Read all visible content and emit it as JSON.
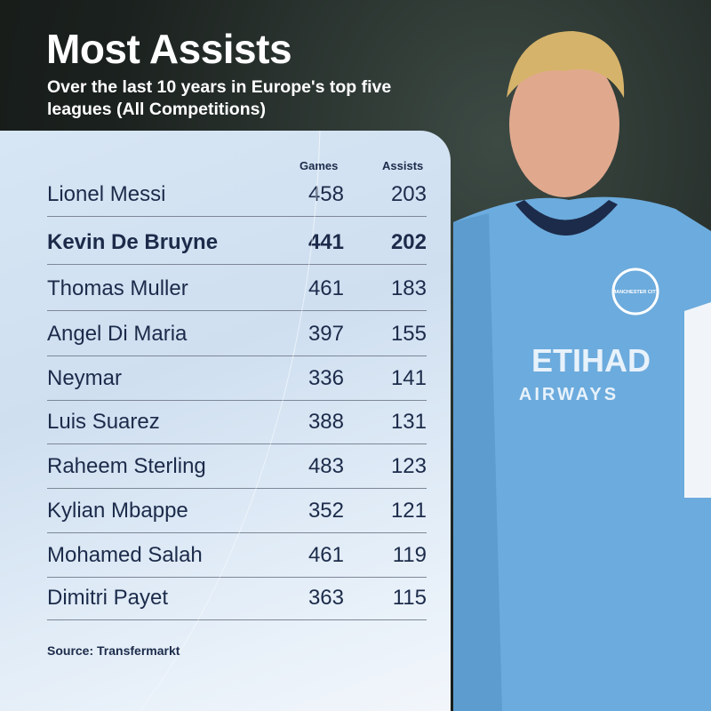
{
  "title": "Most Assists",
  "subtitle": "Over the last 10 years in Europe's top five leagues (All Competitions)",
  "columns": {
    "games": "Games",
    "assists": "Assists"
  },
  "rows": [
    {
      "name": "Lionel Messi",
      "games": "458",
      "assists": "203"
    },
    {
      "name": "Kevin De Bruyne",
      "games": "441",
      "assists": "202",
      "highlight": true
    },
    {
      "name": "Thomas Muller",
      "games": "461",
      "assists": "183"
    },
    {
      "name": "Angel Di Maria",
      "games": "397",
      "assists": "155"
    },
    {
      "name": "Neymar",
      "games": "336",
      "assists": "141"
    },
    {
      "name": "Luis Suarez",
      "games": "388",
      "assists": "131"
    },
    {
      "name": "Raheem Sterling",
      "games": "483",
      "assists": "123"
    },
    {
      "name": "Kylian Mbappe",
      "games": "352",
      "assists": "121"
    },
    {
      "name": "Mohamed Salah",
      "games": "461",
      "assists": "119"
    },
    {
      "name": "Dimitri Payet",
      "games": "363",
      "assists": "115"
    }
  ],
  "source": "Source: Transfermarkt",
  "photo": {
    "jersey_sponsor": "ETIHAD AIRWAYS",
    "club_badge": "MANCHESTER CITY"
  },
  "colors": {
    "text": "#1c2b4a",
    "jersey": "#6cabdd"
  }
}
